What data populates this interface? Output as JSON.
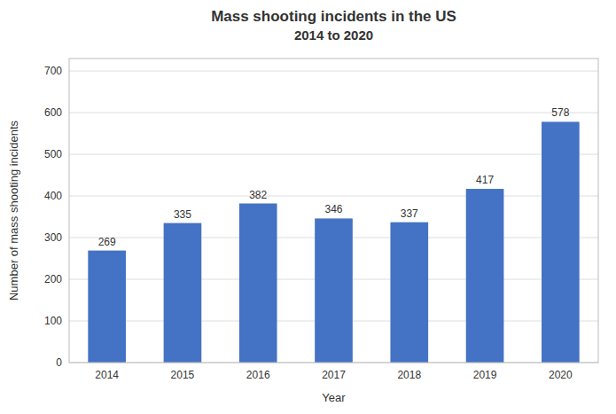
{
  "chart_data": {
    "type": "bar",
    "title": "Mass shooting incidents in the US",
    "subtitle": "2014 to 2020",
    "x_label": "Year",
    "y_label": "Number of mass shooting incidents",
    "categories": [
      "2014",
      "2015",
      "2016",
      "2017",
      "2018",
      "2019",
      "2020"
    ],
    "values": [
      269,
      335,
      382,
      346,
      337,
      417,
      578
    ],
    "color": "#4472C4",
    "ylim": [
      0,
      730
    ],
    "yticks": [
      0,
      100,
      200,
      300,
      400,
      500,
      600,
      700
    ],
    "grid": true,
    "data_labels": true
  }
}
